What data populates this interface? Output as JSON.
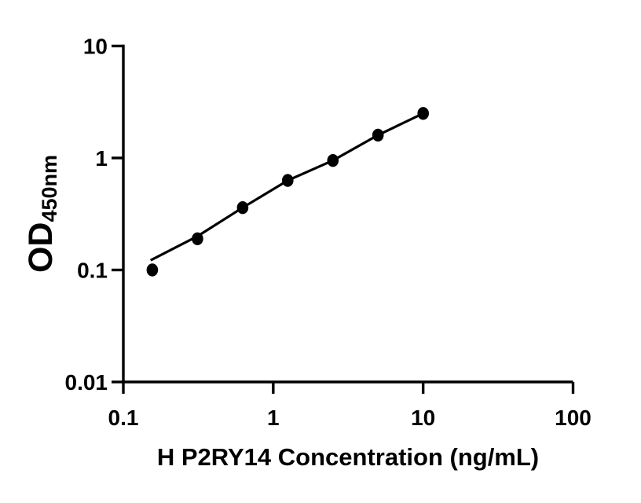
{
  "chart_data": {
    "type": "scatter",
    "title": "",
    "x_label": "H P2RY14 Concentration (ng/mL)",
    "y_label_main": "OD",
    "y_label_sub": "450nm",
    "x_scale": "log",
    "y_scale": "log",
    "xlim": [
      0.1,
      100
    ],
    "ylim": [
      0.01,
      10
    ],
    "grid": "off",
    "legend": "none",
    "x_ticks": [
      {
        "v": 0.1,
        "label": "0.1"
      },
      {
        "v": 1,
        "label": "1"
      },
      {
        "v": 10,
        "label": "10"
      },
      {
        "v": 100,
        "label": "100"
      }
    ],
    "y_ticks": [
      {
        "v": 10,
        "label": "10"
      },
      {
        "v": 1,
        "label": "1"
      },
      {
        "v": 0.1,
        "label": "0.1"
      },
      {
        "v": 0.01,
        "label": "0.01"
      }
    ],
    "points": [
      {
        "x": 0.156,
        "od": 0.1
      },
      {
        "x": 0.3125,
        "od": 0.19
      },
      {
        "x": 0.625,
        "od": 0.36
      },
      {
        "x": 1.25,
        "od": 0.63
      },
      {
        "x": 2.5,
        "od": 0.95
      },
      {
        "x": 5,
        "od": 1.6
      },
      {
        "x": 10,
        "od": 2.5
      }
    ],
    "fit_line": [
      [
        0.152,
        0.122
      ],
      [
        0.3125,
        0.2
      ],
      [
        0.625,
        0.36
      ],
      [
        1.25,
        0.63
      ],
      [
        2.5,
        0.95
      ],
      [
        5,
        1.6
      ],
      [
        10,
        2.5
      ]
    ],
    "marker_color": "#000000",
    "line_color": "#000000",
    "axis_color": "#000000",
    "background": "#ffffff"
  }
}
